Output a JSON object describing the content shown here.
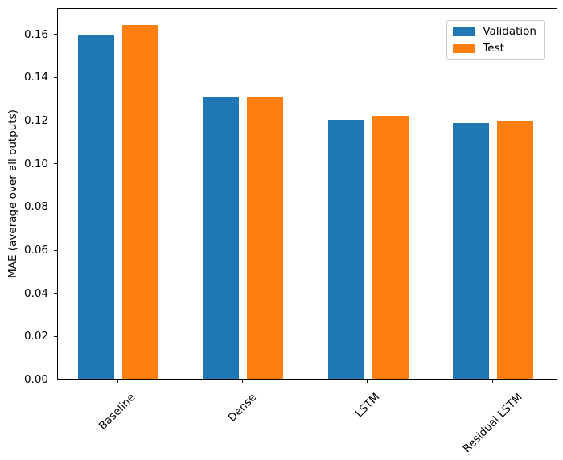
{
  "chart_data": {
    "type": "bar",
    "title": "",
    "categories": [
      "Baseline",
      "Dense",
      "LSTM",
      "Residual LSTM"
    ],
    "series": [
      {
        "name": "Validation",
        "color": "#1f77b4",
        "values": [
          0.159,
          0.131,
          0.1202,
          0.1187
        ]
      },
      {
        "name": "Test",
        "color": "#ff7f0e",
        "values": [
          0.164,
          0.1308,
          0.122,
          0.1196
        ]
      }
    ],
    "xlabel": "",
    "ylabel": "MAE (average over all outputs)",
    "ylim": [
      0,
      0.1722
    ],
    "ytick_values": [
      0.0,
      0.02,
      0.04,
      0.06,
      0.08,
      0.1,
      0.12,
      0.14,
      0.16
    ],
    "ytick_labels": [
      "0.00",
      "0.02",
      "0.04",
      "0.06",
      "0.08",
      "0.10",
      "0.12",
      "0.14",
      "0.16"
    ],
    "xtick_rotation": 45,
    "grid": false,
    "legend": {
      "position": "upper right",
      "entries": [
        "Validation",
        "Test"
      ]
    },
    "colors": {
      "validation": "#1f77b4",
      "test": "#ff7f0e",
      "axis": "#000000",
      "legend_border": "#cccccc",
      "background": "#ffffff"
    }
  }
}
